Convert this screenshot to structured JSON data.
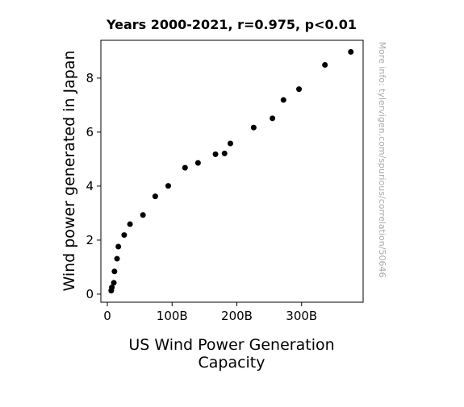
{
  "chart_data": {
    "type": "scatter",
    "title": "Years 2000-2021, r=0.975, p<0.01",
    "xlabel_lines": [
      "US Wind Power Generation",
      "Capacity"
    ],
    "ylabel": "Wind power generated in Japan",
    "side_note": "More info: tylervigen.com/spurious/correlation/50646",
    "xlim": [
      -10,
      395
    ],
    "ylim": [
      -0.3,
      9.4
    ],
    "xticks": [
      {
        "value": 0,
        "label": "0"
      },
      {
        "value": 100,
        "label": "100B"
      },
      {
        "value": 200,
        "label": "200B"
      },
      {
        "value": 300,
        "label": "300B"
      }
    ],
    "yticks": [
      {
        "value": 0,
        "label": "0"
      },
      {
        "value": 2,
        "label": "2"
      },
      {
        "value": 4,
        "label": "4"
      },
      {
        "value": 6,
        "label": "6"
      },
      {
        "value": 8,
        "label": "8"
      }
    ],
    "point_color": "#000000",
    "grid": false,
    "points": [
      {
        "x": 6,
        "y": 0.13
      },
      {
        "x": 7,
        "y": 0.25
      },
      {
        "x": 10,
        "y": 0.42
      },
      {
        "x": 11,
        "y": 0.84
      },
      {
        "x": 15,
        "y": 1.31
      },
      {
        "x": 17,
        "y": 1.76
      },
      {
        "x": 26,
        "y": 2.19
      },
      {
        "x": 35,
        "y": 2.59
      },
      {
        "x": 55,
        "y": 2.93
      },
      {
        "x": 74,
        "y": 3.62
      },
      {
        "x": 94,
        "y": 4.01
      },
      {
        "x": 120,
        "y": 4.68
      },
      {
        "x": 140,
        "y": 4.86
      },
      {
        "x": 167,
        "y": 5.18
      },
      {
        "x": 181,
        "y": 5.21
      },
      {
        "x": 190,
        "y": 5.58
      },
      {
        "x": 226,
        "y": 6.17
      },
      {
        "x": 255,
        "y": 6.51
      },
      {
        "x": 272,
        "y": 7.19
      },
      {
        "x": 296,
        "y": 7.59
      },
      {
        "x": 336,
        "y": 8.49
      },
      {
        "x": 376,
        "y": 8.97
      }
    ]
  }
}
